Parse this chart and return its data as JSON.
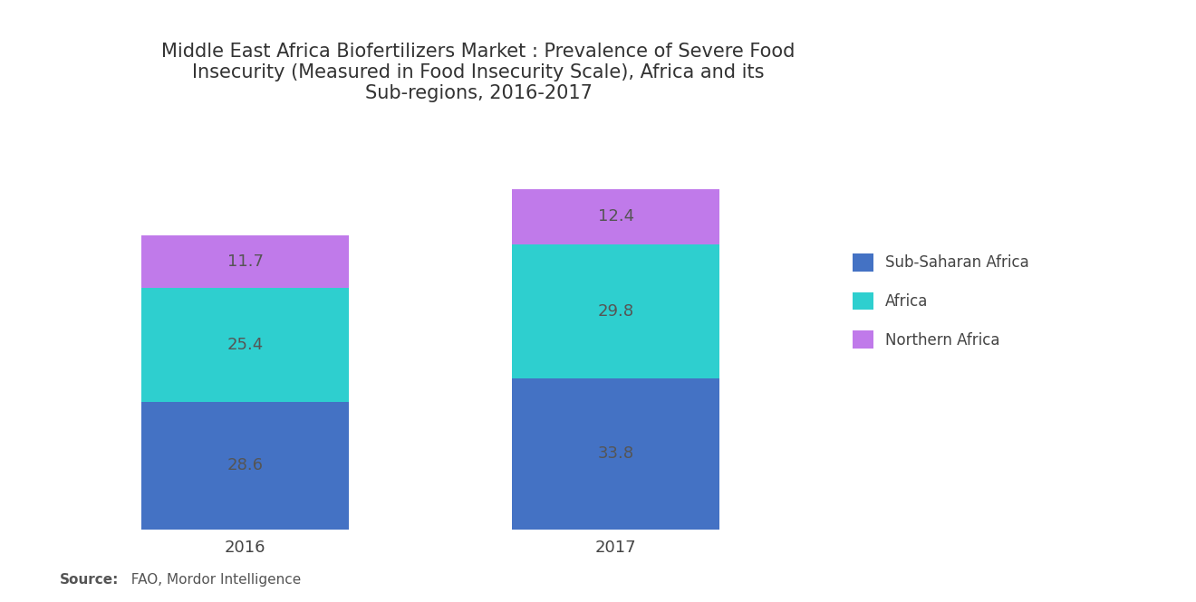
{
  "title": "Middle East Africa Biofertilizers Market : Prevalence of Severe Food\nInsecurity (Measured in Food Insecurity Scale), Africa and its\nSub-regions, 2016-2017",
  "years": [
    "2016",
    "2017"
  ],
  "series": [
    {
      "label": "Sub-Saharan Africa",
      "values": [
        28.6,
        33.8
      ],
      "color": "#4472C4"
    },
    {
      "label": "Africa",
      "values": [
        25.4,
        29.8
      ],
      "color": "#2ECFCF"
    },
    {
      "label": "Northern Africa",
      "values": [
        11.7,
        12.4
      ],
      "color": "#C07AEA"
    }
  ],
  "source_bold": "Source:",
  "source_rest": "  FAO, Mordor Intelligence",
  "bar_width": 0.28,
  "background_color": "#FFFFFF",
  "text_color": "#555555",
  "title_fontsize": 15,
  "label_fontsize": 13,
  "legend_fontsize": 12,
  "source_fontsize": 11
}
